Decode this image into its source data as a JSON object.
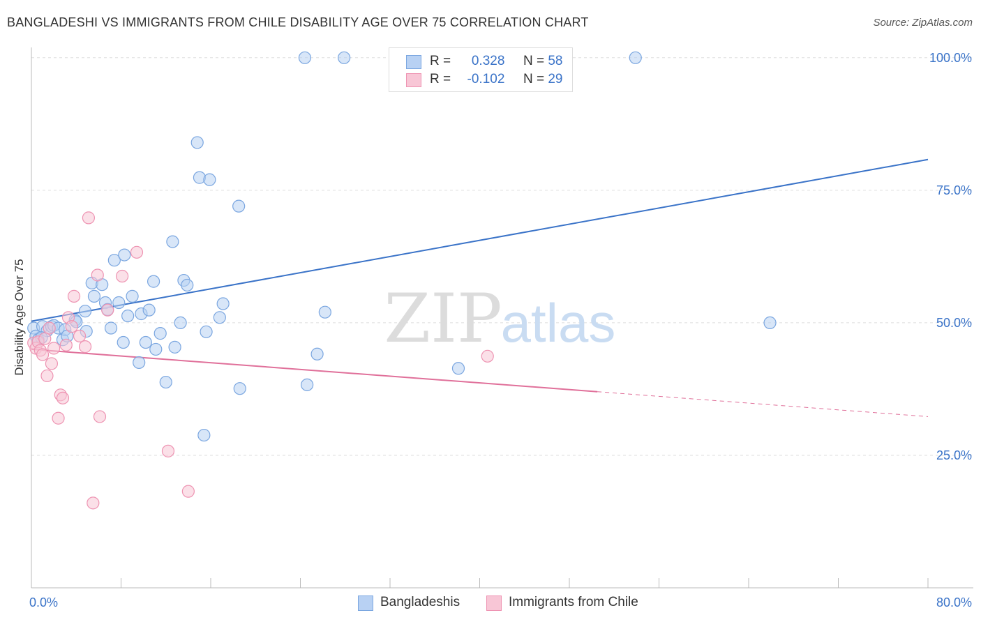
{
  "title": "BANGLADESHI VS IMMIGRANTS FROM CHILE DISABILITY AGE OVER 75 CORRELATION CHART",
  "source": "Source: ZipAtlas.com",
  "watermark": {
    "zip": "ZIP",
    "atlas": "atlas"
  },
  "legend": {
    "rows": [
      {
        "r_label": "R =",
        "r_value": "0.328",
        "n_label": "N =",
        "n_value": "58"
      },
      {
        "r_label": "R =",
        "r_value": "-0.102",
        "n_label": "N =",
        "n_value": "29"
      }
    ]
  },
  "colors": {
    "blue_fill": "#b8d1f3",
    "blue_stroke": "#7aa6e0",
    "blue_line": "#3a73c8",
    "pink_fill": "#f8c6d6",
    "pink_stroke": "#ee93b2",
    "pink_line": "#e0709a",
    "tick_label": "#3a73c8",
    "grid": "#dddddd"
  },
  "chart_data": {
    "type": "scatter",
    "title": "BANGLADESHI VS IMMIGRANTS FROM CHILE DISABILITY AGE OVER 75 CORRELATION CHART",
    "xlabel": "",
    "ylabel": "Disability Age Over 75",
    "xlim": [
      0,
      80
    ],
    "ylim": [
      0,
      103
    ],
    "x_tick_labels": [
      {
        "value": 0,
        "label": "0.0%"
      },
      {
        "value": 80,
        "label": "80.0%"
      }
    ],
    "y_tick_labels": [
      {
        "value": 25,
        "label": "25.0%"
      },
      {
        "value": 50,
        "label": "50.0%"
      },
      {
        "value": 75,
        "label": "75.0%"
      },
      {
        "value": 100,
        "label": "100.0%"
      }
    ],
    "series": [
      {
        "name": "Bangladeshis",
        "color": "#7aa6e0",
        "points": [
          [
            0.2,
            49.0
          ],
          [
            0.4,
            47.5
          ],
          [
            0.6,
            46.8
          ],
          [
            1.0,
            49.3
          ],
          [
            1.4,
            48.5
          ],
          [
            1.8,
            49.3
          ],
          [
            2.0,
            49.5
          ],
          [
            2.4,
            49.0
          ],
          [
            2.8,
            46.8
          ],
          [
            3.0,
            48.7
          ],
          [
            3.2,
            47.5
          ],
          [
            3.9,
            50.5
          ],
          [
            4.0,
            50.2
          ],
          [
            4.8,
            52.2
          ],
          [
            4.9,
            48.4
          ],
          [
            5.4,
            57.5
          ],
          [
            5.6,
            55.0
          ],
          [
            6.3,
            57.2
          ],
          [
            6.6,
            53.8
          ],
          [
            6.8,
            52.5
          ],
          [
            7.1,
            49.0
          ],
          [
            7.4,
            61.8
          ],
          [
            7.8,
            53.8
          ],
          [
            8.2,
            46.3
          ],
          [
            8.3,
            62.8
          ],
          [
            8.6,
            51.3
          ],
          [
            9.0,
            55.0
          ],
          [
            9.6,
            42.5
          ],
          [
            9.8,
            51.7
          ],
          [
            10.2,
            46.3
          ],
          [
            10.5,
            52.4
          ],
          [
            10.9,
            57.8
          ],
          [
            11.1,
            45.0
          ],
          [
            11.5,
            48.0
          ],
          [
            12.0,
            38.8
          ],
          [
            12.6,
            65.3
          ],
          [
            12.8,
            45.4
          ],
          [
            13.3,
            50.0
          ],
          [
            13.6,
            58.0
          ],
          [
            13.9,
            57.1
          ],
          [
            14.8,
            84.0
          ],
          [
            15.0,
            77.4
          ],
          [
            15.4,
            28.8
          ],
          [
            15.6,
            48.3
          ],
          [
            15.9,
            77.0
          ],
          [
            16.8,
            51.0
          ],
          [
            17.1,
            53.6
          ],
          [
            18.5,
            72.0
          ],
          [
            18.6,
            37.6
          ],
          [
            24.4,
            100.0
          ],
          [
            24.6,
            38.3
          ],
          [
            25.5,
            44.1
          ],
          [
            26.2,
            52.0
          ],
          [
            27.9,
            100.0
          ],
          [
            38.1,
            41.4
          ],
          [
            53.9,
            100.0
          ],
          [
            65.9,
            50.0
          ],
          [
            0.9,
            47.2
          ]
        ],
        "trend": {
          "x0": 0,
          "y0": 50.3,
          "x1": 80,
          "y1": 80.8
        }
      },
      {
        "name": "Immigrants from Chile",
        "color": "#ee93b2",
        "points": [
          [
            0.2,
            46.2
          ],
          [
            0.4,
            45.2
          ],
          [
            0.6,
            46.4
          ],
          [
            0.8,
            44.8
          ],
          [
            1.0,
            44.0
          ],
          [
            1.4,
            40.0
          ],
          [
            1.6,
            49.0
          ],
          [
            1.8,
            42.3
          ],
          [
            2.0,
            45.2
          ],
          [
            2.4,
            32.0
          ],
          [
            2.6,
            36.4
          ],
          [
            2.8,
            35.8
          ],
          [
            3.1,
            45.8
          ],
          [
            3.3,
            51.0
          ],
          [
            3.6,
            49.3
          ],
          [
            3.8,
            55.0
          ],
          [
            4.3,
            47.5
          ],
          [
            4.8,
            45.5
          ],
          [
            5.1,
            69.8
          ],
          [
            5.5,
            16.0
          ],
          [
            5.9,
            59.0
          ],
          [
            6.1,
            32.3
          ],
          [
            6.8,
            52.4
          ],
          [
            8.1,
            58.8
          ],
          [
            9.4,
            63.3
          ],
          [
            12.2,
            25.8
          ],
          [
            14.0,
            18.2
          ],
          [
            40.7,
            43.7
          ],
          [
            1.2,
            47.0
          ]
        ],
        "trend": {
          "x0": 0,
          "y0": 45.0,
          "x1": 50.5,
          "y1": 37.0,
          "dash_x1": 80,
          "dash_y1": 32.3
        }
      }
    ]
  },
  "bottom_legend": [
    {
      "label": "Bangladeshis"
    },
    {
      "label": "Immigrants from Chile"
    }
  ]
}
